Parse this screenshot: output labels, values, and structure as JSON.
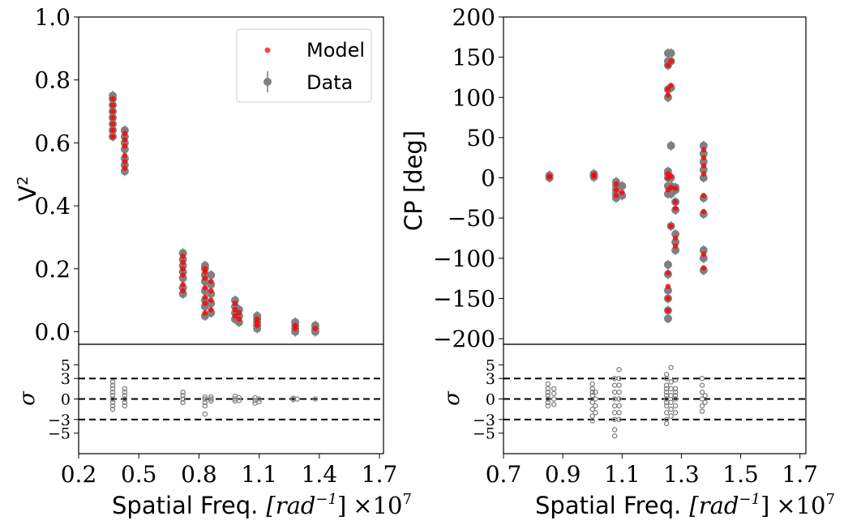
{
  "colors": {
    "data": "#808080",
    "model": "#ff0000",
    "line": "#000000"
  },
  "legend": {
    "model": "Model",
    "data": "Data"
  },
  "axis_text": {
    "xlabel_left": "Spatial Freq.",
    "xlabel_unit": "[rad",
    "xlabel_exp": "−1",
    "xlabel_close": "]",
    "xlabel_mult": "×10",
    "xlabel_mult_exp": "7",
    "v2_label": "V",
    "v2_sup": "2",
    "cp_label": "CP [deg]",
    "sigma": "σ"
  },
  "chart_data": [
    {
      "name": "V2 panel",
      "type": "scatter",
      "title": "",
      "xlabel": "Spatial Freq. [rad^-1] ×10^7",
      "ylabel": "V^2",
      "xlim": [
        0.2,
        1.72
      ],
      "ylim": [
        -0.04,
        1.0
      ],
      "xticks": [
        "0.2",
        "0.5",
        "0.8",
        "1.1",
        "1.4",
        "1.7"
      ],
      "yticks": [
        "0.0",
        "0.2",
        "0.4",
        "0.6",
        "0.8",
        "1.0"
      ],
      "legend": "top-right",
      "series": [
        {
          "name": "Data",
          "groups": [
            {
              "x": 0.37,
              "y": [
                0.62,
                0.64,
                0.66,
                0.68,
                0.7,
                0.72,
                0.74,
                0.75
              ]
            },
            {
              "x": 0.43,
              "y": [
                0.51,
                0.53,
                0.55,
                0.58,
                0.6,
                0.62,
                0.64
              ]
            },
            {
              "x": 0.72,
              "y": [
                0.12,
                0.14,
                0.17,
                0.19,
                0.21,
                0.23,
                0.25
              ]
            },
            {
              "x": 0.83,
              "y": [
                0.05,
                0.08,
                0.1,
                0.13,
                0.16,
                0.18,
                0.2,
                0.21
              ]
            },
            {
              "x": 0.86,
              "y": [
                0.06,
                0.09,
                0.12,
                0.15,
                0.18
              ]
            },
            {
              "x": 0.98,
              "y": [
                0.04,
                0.06,
                0.08,
                0.1
              ]
            },
            {
              "x": 1.0,
              "y": [
                0.03,
                0.05,
                0.07
              ]
            },
            {
              "x": 1.09,
              "y": [
                0.01,
                0.02,
                0.03,
                0.04,
                0.05
              ]
            },
            {
              "x": 1.28,
              "y": [
                0.0,
                0.01,
                0.02,
                0.03
              ]
            },
            {
              "x": 1.38,
              "y": [
                0.0,
                0.01,
                0.02
              ]
            }
          ]
        },
        {
          "name": "Model",
          "groups": [
            {
              "x": 0.37,
              "y": [
                0.62,
                0.64,
                0.66,
                0.68,
                0.7,
                0.72,
                0.74
              ]
            },
            {
              "x": 0.43,
              "y": [
                0.52,
                0.54,
                0.56,
                0.59,
                0.61,
                0.63
              ]
            },
            {
              "x": 0.72,
              "y": [
                0.13,
                0.15,
                0.18,
                0.2,
                0.22,
                0.24
              ]
            },
            {
              "x": 0.83,
              "y": [
                0.06,
                0.09,
                0.11,
                0.14,
                0.17,
                0.19,
                0.2
              ]
            },
            {
              "x": 0.86,
              "y": [
                0.07,
                0.1,
                0.13,
                0.16
              ]
            },
            {
              "x": 0.98,
              "y": [
                0.05,
                0.07,
                0.09
              ]
            },
            {
              "x": 1.0,
              "y": [
                0.04,
                0.06
              ]
            },
            {
              "x": 1.09,
              "y": [
                0.02,
                0.03,
                0.04
              ]
            },
            {
              "x": 1.28,
              "y": [
                0.01,
                0.02
              ]
            },
            {
              "x": 1.38,
              "y": [
                0.01
              ]
            }
          ]
        }
      ]
    },
    {
      "name": "V2 residuals",
      "type": "scatter",
      "ylabel": "σ",
      "ylim": [
        -8,
        8
      ],
      "yticks": [
        "−5",
        "−3",
        "0",
        "3",
        "5"
      ],
      "hlines": [
        -3,
        0,
        3
      ],
      "series": [
        {
          "name": "Residual",
          "groups": [
            {
              "x": 0.37,
              "y": [
                -1.5,
                -1.0,
                -0.5,
                0.0,
                0.5,
                1.0,
                1.5,
                2.0,
                2.5
              ]
            },
            {
              "x": 0.43,
              "y": [
                -1.0,
                -0.5,
                0.0,
                0.5,
                1.0,
                1.5
              ]
            },
            {
              "x": 0.72,
              "y": [
                -0.5,
                0.0,
                0.5,
                1.0
              ]
            },
            {
              "x": 0.83,
              "y": [
                -2.2,
                -1.0,
                -0.5,
                0.0,
                0.3
              ]
            },
            {
              "x": 0.86,
              "y": [
                -0.3,
                0.0,
                0.3
              ]
            },
            {
              "x": 0.98,
              "y": [
                -0.3,
                0.0,
                0.4
              ]
            },
            {
              "x": 1.0,
              "y": [
                -0.2,
                0.2
              ]
            },
            {
              "x": 1.08,
              "y": [
                -0.6,
                -0.2,
                0.2
              ]
            },
            {
              "x": 1.1,
              "y": [
                -0.4,
                0.0
              ]
            },
            {
              "x": 1.27,
              "y": [
                -0.1,
                0.1
              ]
            },
            {
              "x": 1.29,
              "y": [
                0.0
              ]
            },
            {
              "x": 1.38,
              "y": [
                0.0
              ]
            }
          ]
        }
      ]
    },
    {
      "name": "CP panel",
      "type": "scatter",
      "title": "",
      "xlabel": "Spatial Freq. [rad^-1] ×10^7",
      "ylabel": "CP [deg]",
      "xlim": [
        0.7,
        1.72
      ],
      "ylim": [
        -207,
        200
      ],
      "xticks": [
        "0.7",
        "0.9",
        "1.1",
        "1.3",
        "1.5",
        "1.7"
      ],
      "yticks": [
        "−200",
        "−150",
        "−100",
        "−50",
        "0",
        "50",
        "100",
        "150",
        "200"
      ],
      "series": [
        {
          "name": "Data",
          "groups": [
            {
              "x": 0.855,
              "y": [
                0,
                1,
                2,
                3
              ]
            },
            {
              "x": 1.005,
              "y": [
                1,
                3,
                5
              ]
            },
            {
              "x": 1.08,
              "y": [
                -25,
                -20,
                -15,
                -10,
                -5
              ]
            },
            {
              "x": 1.1,
              "y": [
                -22,
                -10
              ]
            },
            {
              "x": 1.255,
              "y": [
                -175,
                -165,
                -150,
                -140,
                -120,
                -108,
                -20,
                -10,
                0,
                5,
                8,
                100,
                110,
                140,
                145,
                155
              ]
            },
            {
              "x": 1.265,
              "y": [
                -60,
                -20,
                -10,
                0,
                40,
                112,
                145,
                155
              ]
            },
            {
              "x": 1.28,
              "y": [
                -90,
                -80,
                -70,
                -40,
                -30,
                -15,
                -12
              ]
            },
            {
              "x": 1.375,
              "y": [
                -115,
                -100,
                -90,
                -45,
                -25,
                0,
                10,
                20,
                30,
                40
              ]
            }
          ]
        },
        {
          "name": "Model",
          "groups": [
            {
              "x": 0.855,
              "y": [
                1,
                2
              ]
            },
            {
              "x": 1.005,
              "y": [
                2,
                4
              ]
            },
            {
              "x": 1.08,
              "y": [
                -22,
                -15,
                -8
              ]
            },
            {
              "x": 1.1,
              "y": [
                -18
              ]
            },
            {
              "x": 1.255,
              "y": [
                -165,
                -150,
                -135,
                -118,
                -15,
                0,
                5,
                103,
                110,
                140
              ]
            },
            {
              "x": 1.265,
              "y": [
                -60,
                -12,
                2,
                115,
                145
              ]
            },
            {
              "x": 1.28,
              "y": [
                -85,
                -75,
                -38,
                -30,
                -13
              ]
            },
            {
              "x": 1.375,
              "y": [
                -112,
                -95,
                -42,
                -22,
                5,
                15,
                25,
                35
              ]
            }
          ]
        }
      ]
    },
    {
      "name": "CP residuals",
      "type": "scatter",
      "ylabel": "σ",
      "ylim": [
        -8,
        8
      ],
      "yticks": [
        "−5",
        "−3",
        "0",
        "3",
        "5"
      ],
      "hlines": [
        -3,
        0,
        3
      ],
      "series": [
        {
          "name": "Residual",
          "groups": [
            {
              "x": 0.85,
              "y": [
                -1.0,
                -0.5,
                0.0,
                0.5,
                1.0,
                1.5,
                2.2
              ]
            },
            {
              "x": 0.87,
              "y": [
                -0.8,
                0.0,
                0.8,
                1.5
              ]
            },
            {
              "x": 1.0,
              "y": [
                -3.2,
                -2.5,
                -1.5,
                -0.5,
                0.5,
                1.0,
                1.5,
                2.2
              ]
            },
            {
              "x": 1.01,
              "y": [
                -2.0,
                -1.0,
                0.0,
                1.0
              ]
            },
            {
              "x": 1.075,
              "y": [
                -5.4,
                -4.5,
                -3.0,
                -2.0,
                -1.0,
                0.0,
                1.0,
                2.0,
                3.0
              ]
            },
            {
              "x": 1.09,
              "y": [
                -3.0,
                -2.0,
                -1.0,
                0.0,
                1.0,
                2.0,
                3.0,
                4.3
              ]
            },
            {
              "x": 1.25,
              "y": [
                -3.6,
                -3.0,
                -2.0,
                -1.0,
                -0.5,
                0.0,
                0.5,
                1.0,
                1.5,
                2.0,
                3.0,
                3.6
              ]
            },
            {
              "x": 1.265,
              "y": [
                -2.5,
                -1.5,
                -0.5,
                0.5,
                1.5,
                2.5,
                4.6
              ]
            },
            {
              "x": 1.28,
              "y": [
                -2.0,
                -1.0,
                0.0,
                0.5,
                1.0,
                1.5,
                2.8
              ]
            },
            {
              "x": 1.37,
              "y": [
                -1.8,
                -1.0,
                0.0,
                1.0,
                2.0,
                3.0
              ]
            },
            {
              "x": 1.38,
              "y": [
                -0.5,
                0.5
              ]
            }
          ]
        }
      ]
    }
  ]
}
